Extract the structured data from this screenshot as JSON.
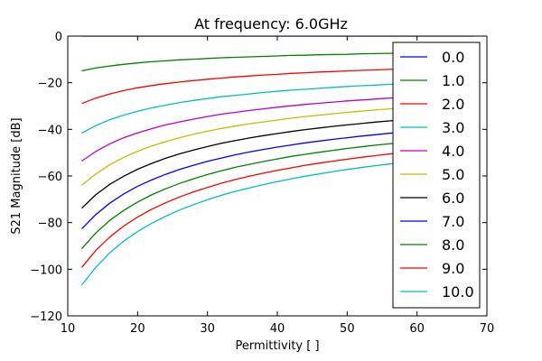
{
  "chart_data": {
    "type": "line",
    "title": "At frequency: 6.0GHz",
    "xlabel": "Permittivity [ ]",
    "ylabel": "S21 Magnitude [dB]",
    "xlim": [
      10,
      70
    ],
    "ylim": [
      -120,
      0
    ],
    "xticks": [
      10,
      20,
      30,
      40,
      50,
      60,
      70
    ],
    "yticks": [
      0,
      -20,
      -40,
      -60,
      -80,
      -100,
      -120
    ],
    "grid": false,
    "legend_position": "top-right",
    "x": [
      12,
      14,
      16,
      18,
      20,
      22,
      24,
      26,
      28,
      30,
      32,
      34,
      36,
      38,
      40,
      42,
      44,
      46,
      48,
      50,
      52,
      54,
      56,
      58,
      60,
      62,
      64,
      66,
      68
    ],
    "series": [
      {
        "name": "0.0",
        "color": "#0000ff",
        "values": [
          0,
          0,
          0,
          0,
          0,
          0,
          0,
          0,
          0,
          0,
          0,
          0,
          0,
          0,
          0,
          0,
          0,
          0,
          0,
          0,
          0,
          0,
          0,
          0,
          0,
          0,
          0,
          0,
          0
        ]
      },
      {
        "name": "1.0",
        "color": "#008000",
        "values": [
          -14.9,
          -13.7,
          -12.8,
          -12.1,
          -11.5,
          -11.0,
          -10.6,
          -10.2,
          -9.9,
          -9.6,
          -9.3,
          -9.1,
          -8.9,
          -8.7,
          -8.5,
          -8.3,
          -8.2,
          -8.0,
          -7.9,
          -7.8,
          -7.6,
          -7.5,
          -7.4,
          -7.3,
          -7.2,
          -7.1,
          -7.0,
          -7.0,
          -6.9
        ]
      },
      {
        "name": "2.0",
        "color": "#ff0000",
        "values": [
          -28.9,
          -26.6,
          -24.8,
          -23.4,
          -22.2,
          -21.2,
          -20.4,
          -19.7,
          -19.1,
          -18.5,
          -18.0,
          -17.5,
          -17.1,
          -16.7,
          -16.4,
          -16.0,
          -15.7,
          -15.4,
          -15.2,
          -14.9,
          -14.7,
          -14.5,
          -14.3,
          -14.1,
          -13.9,
          -13.7,
          -13.5,
          -13.4,
          -13.2
        ]
      },
      {
        "name": "3.0",
        "color": "#00bfbf",
        "values": [
          -41.6,
          -38.4,
          -35.9,
          -33.9,
          -32.2,
          -30.8,
          -29.6,
          -28.5,
          -27.6,
          -26.8,
          -26.0,
          -25.4,
          -24.8,
          -24.2,
          -23.7,
          -23.2,
          -22.8,
          -22.4,
          -22.0,
          -21.6,
          -21.3,
          -21.0,
          -20.7,
          -20.4,
          -20.1,
          -19.8,
          -19.6,
          -19.3,
          -19.1
        ]
      },
      {
        "name": "4.0",
        "color": "#bf00bf",
        "values": [
          -53.6,
          -49.5,
          -46.2,
          -43.6,
          -41.5,
          -39.7,
          -38.1,
          -36.8,
          -35.6,
          -34.5,
          -33.5,
          -32.7,
          -31.9,
          -31.2,
          -30.5,
          -29.9,
          -29.3,
          -28.8,
          -28.3,
          -27.8,
          -27.4,
          -27.0,
          -26.6,
          -26.3,
          -25.9,
          -25.6,
          -25.3,
          -25.0,
          -24.7
        ]
      },
      {
        "name": "5.0",
        "color": "#bfbf00",
        "values": [
          -64.0,
          -59.2,
          -55.2,
          -52.0,
          -49.4,
          -47.2,
          -45.3,
          -43.6,
          -42.1,
          -40.8,
          -39.6,
          -38.6,
          -37.6,
          -36.8,
          -36.0,
          -35.2,
          -34.5,
          -33.9,
          -33.3,
          -32.7,
          -32.2,
          -31.7,
          -31.2,
          -30.8,
          -30.4,
          -30.0,
          -29.6,
          -29.3,
          -28.9
        ]
      },
      {
        "name": "6.0",
        "color": "#000000",
        "values": [
          -73.8,
          -68.1,
          -63.6,
          -60.1,
          -57.1,
          -54.6,
          -52.4,
          -50.5,
          -48.9,
          -47.4,
          -46.0,
          -44.8,
          -43.7,
          -42.7,
          -41.8,
          -40.9,
          -40.1,
          -39.4,
          -38.7,
          -38.1,
          -37.5,
          -36.9,
          -36.4,
          -35.9,
          -35.4,
          -35.0,
          -34.5,
          -34.1,
          -33.7
        ]
      },
      {
        "name": "7.0",
        "color": "#0000ff",
        "values": [
          -82.7,
          -76.6,
          -71.7,
          -67.7,
          -64.4,
          -61.7,
          -59.3,
          -57.2,
          -55.4,
          -53.7,
          -52.3,
          -50.9,
          -49.7,
          -48.6,
          -47.6,
          -46.7,
          -45.8,
          -45.0,
          -44.3,
          -43.6,
          -42.9,
          -42.3,
          -41.7,
          -41.2,
          -40.7,
          -40.2,
          -39.7,
          -39.2,
          -38.8
        ]
      },
      {
        "name": "8.0",
        "color": "#008000",
        "values": [
          -91.2,
          -84.5,
          -79.1,
          -74.8,
          -71.2,
          -68.1,
          -65.5,
          -63.2,
          -61.2,
          -59.4,
          -57.8,
          -56.3,
          -55.0,
          -53.8,
          -52.7,
          -51.6,
          -50.7,
          -49.8,
          -49.0,
          -48.2,
          -47.5,
          -46.8,
          -46.2,
          -45.6,
          -45.0,
          -44.5,
          -44.0,
          -43.5,
          -43.0
        ]
      },
      {
        "name": "9.0",
        "color": "#ff0000",
        "values": [
          -99.2,
          -92.0,
          -86.2,
          -81.5,
          -77.6,
          -74.3,
          -71.5,
          -69.0,
          -66.8,
          -64.9,
          -63.1,
          -61.5,
          -60.1,
          -58.8,
          -57.6,
          -56.5,
          -55.4,
          -54.5,
          -53.6,
          -52.8,
          -52.0,
          -51.3,
          -50.6,
          -49.9,
          -49.3,
          -48.7,
          -48.2,
          -47.6,
          -47.1
        ]
      },
      {
        "name": "10.0",
        "color": "#00bfbf",
        "values": [
          -106.8,
          -99.2,
          -93.0,
          -88.0,
          -83.8,
          -80.3,
          -77.3,
          -74.6,
          -72.3,
          -70.2,
          -68.3,
          -66.6,
          -65.1,
          -63.7,
          -62.4,
          -61.2,
          -60.1,
          -59.1,
          -58.1,
          -57.2,
          -56.4,
          -55.6,
          -54.9,
          -54.2,
          -53.5,
          -52.9,
          -52.3,
          -51.7,
          -51.2
        ]
      }
    ]
  }
}
